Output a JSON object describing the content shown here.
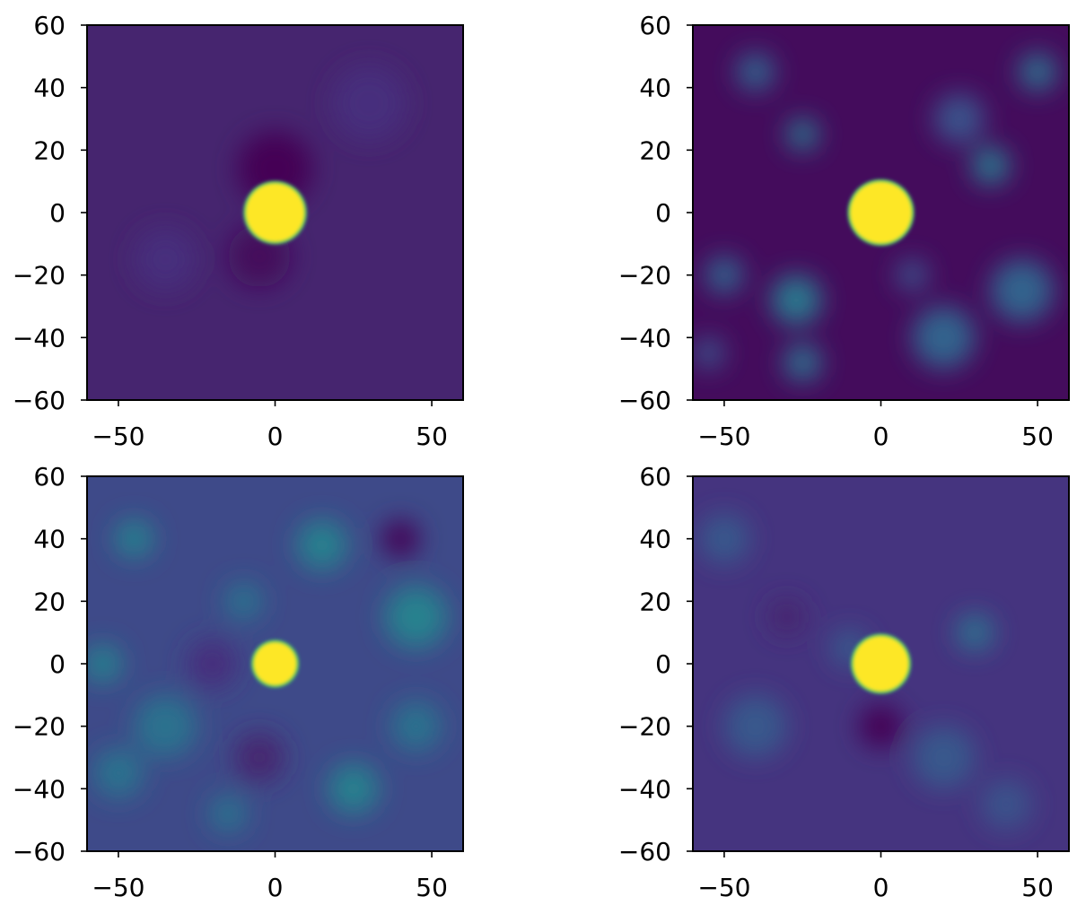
{
  "chart_data": [
    {
      "type": "heatmap",
      "xlim": [
        -60,
        60
      ],
      "ylim": [
        -60,
        60
      ],
      "xticks": [
        {
          "value": -50,
          "label": "−50"
        },
        0,
        50
      ],
      "yticks": [
        {
          "value": -60,
          "label": "−60"
        },
        {
          "value": -40,
          "label": "−40"
        },
        {
          "value": -20,
          "label": "−20"
        },
        0,
        20,
        40,
        60
      ],
      "background": "#46256f",
      "blobs": [
        {
          "x": 0,
          "y": 14,
          "r": 12,
          "color": "#440154"
        },
        {
          "x": -5,
          "y": -14,
          "r": 10,
          "color": "#440a5c"
        },
        {
          "x": -35,
          "y": -15,
          "r": 10,
          "color": "#472f7d"
        },
        {
          "x": 30,
          "y": 35,
          "r": 12,
          "color": "#472f7d"
        }
      ],
      "disc": {
        "x": 0,
        "y": 0,
        "r": 9.5,
        "color": "#fde725"
      }
    },
    {
      "type": "heatmap",
      "xlim": [
        -60,
        60
      ],
      "ylim": [
        -60,
        60
      ],
      "xticks": [
        {
          "value": -50,
          "label": "−50"
        },
        0,
        50
      ],
      "yticks": [
        {
          "value": -60,
          "label": "−60"
        },
        {
          "value": -40,
          "label": "−40"
        },
        {
          "value": -20,
          "label": "−20"
        },
        0,
        20,
        40,
        60
      ],
      "background": "#440c5c",
      "blobs": [
        {
          "x": -25,
          "y": 25,
          "r": 5,
          "color": "#2a788e"
        },
        {
          "x": 35,
          "y": 15,
          "r": 6,
          "color": "#2a788e"
        },
        {
          "x": -27,
          "y": -28,
          "r": 8,
          "color": "#2a788e"
        },
        {
          "x": -25,
          "y": -48,
          "r": 6,
          "color": "#2d708e"
        },
        {
          "x": -50,
          "y": -20,
          "r": 6,
          "color": "#33638d"
        },
        {
          "x": 20,
          "y": -40,
          "r": 10,
          "color": "#33638d"
        },
        {
          "x": 45,
          "y": -25,
          "r": 10,
          "color": "#33638d"
        },
        {
          "x": 50,
          "y": 45,
          "r": 6,
          "color": "#2d708e"
        },
        {
          "x": -40,
          "y": 45,
          "r": 6,
          "color": "#33638d"
        },
        {
          "x": 10,
          "y": -20,
          "r": 5,
          "color": "#3b528b"
        },
        {
          "x": 25,
          "y": 30,
          "r": 8,
          "color": "#3b528b"
        },
        {
          "x": -55,
          "y": -45,
          "r": 5,
          "color": "#3b528b"
        }
      ],
      "disc": {
        "x": 0,
        "y": 0,
        "r": 10,
        "color": "#fde725"
      }
    },
    {
      "type": "heatmap",
      "xlim": [
        -60,
        60
      ],
      "ylim": [
        -60,
        60
      ],
      "xticks": [
        {
          "value": -50,
          "label": "−50"
        },
        0,
        50
      ],
      "yticks": [
        {
          "value": -60,
          "label": "−60"
        },
        {
          "value": -40,
          "label": "−40"
        },
        {
          "value": -20,
          "label": "−20"
        },
        0,
        20,
        40,
        60
      ],
      "background": "#3e4a89",
      "blobs": [
        {
          "x": -45,
          "y": 40,
          "r": 6,
          "color": "#26828e"
        },
        {
          "x": -10,
          "y": 20,
          "r": 6,
          "color": "#2c728e"
        },
        {
          "x": 15,
          "y": 38,
          "r": 8,
          "color": "#26828e"
        },
        {
          "x": 45,
          "y": 15,
          "r": 10,
          "color": "#26828e"
        },
        {
          "x": -55,
          "y": 0,
          "r": 6,
          "color": "#26828e"
        },
        {
          "x": -50,
          "y": -35,
          "r": 8,
          "color": "#2c728e"
        },
        {
          "x": -35,
          "y": -20,
          "r": 10,
          "color": "#2c728e"
        },
        {
          "x": 25,
          "y": -40,
          "r": 8,
          "color": "#26828e"
        },
        {
          "x": -15,
          "y": -48,
          "r": 6,
          "color": "#2c728e"
        },
        {
          "x": 45,
          "y": -20,
          "r": 8,
          "color": "#2c728e"
        },
        {
          "x": 40,
          "y": 40,
          "r": 6,
          "color": "#440154"
        },
        {
          "x": -5,
          "y": -30,
          "r": 8,
          "color": "#46256f"
        },
        {
          "x": -20,
          "y": 0,
          "r": 8,
          "color": "#472f7d"
        }
      ],
      "disc": {
        "x": 0,
        "y": 0,
        "r": 7,
        "color": "#fde725"
      }
    },
    {
      "type": "heatmap",
      "xlim": [
        -60,
        60
      ],
      "ylim": [
        -60,
        60
      ],
      "xticks": [
        {
          "value": -50,
          "label": "−50"
        },
        0,
        50
      ],
      "yticks": [
        {
          "value": -60,
          "label": "−60"
        },
        {
          "value": -40,
          "label": "−40"
        },
        {
          "value": -20,
          "label": "−20"
        },
        0,
        20,
        40,
        60
      ],
      "background": "#45347f",
      "blobs": [
        {
          "x": -50,
          "y": 40,
          "r": 8,
          "color": "#38598c"
        },
        {
          "x": 30,
          "y": 10,
          "r": 6,
          "color": "#2d708e"
        },
        {
          "x": -40,
          "y": -20,
          "r": 10,
          "color": "#38598c"
        },
        {
          "x": 20,
          "y": -30,
          "r": 10,
          "color": "#38598c"
        },
        {
          "x": -10,
          "y": 5,
          "r": 6,
          "color": "#38598c"
        },
        {
          "x": 40,
          "y": -45,
          "r": 8,
          "color": "#3b528b"
        },
        {
          "x": 0,
          "y": -20,
          "r": 7,
          "color": "#440154"
        },
        {
          "x": -30,
          "y": 15,
          "r": 6,
          "color": "#46256f"
        }
      ],
      "disc": {
        "x": 0,
        "y": 0,
        "r": 9,
        "color": "#fde725"
      }
    }
  ]
}
